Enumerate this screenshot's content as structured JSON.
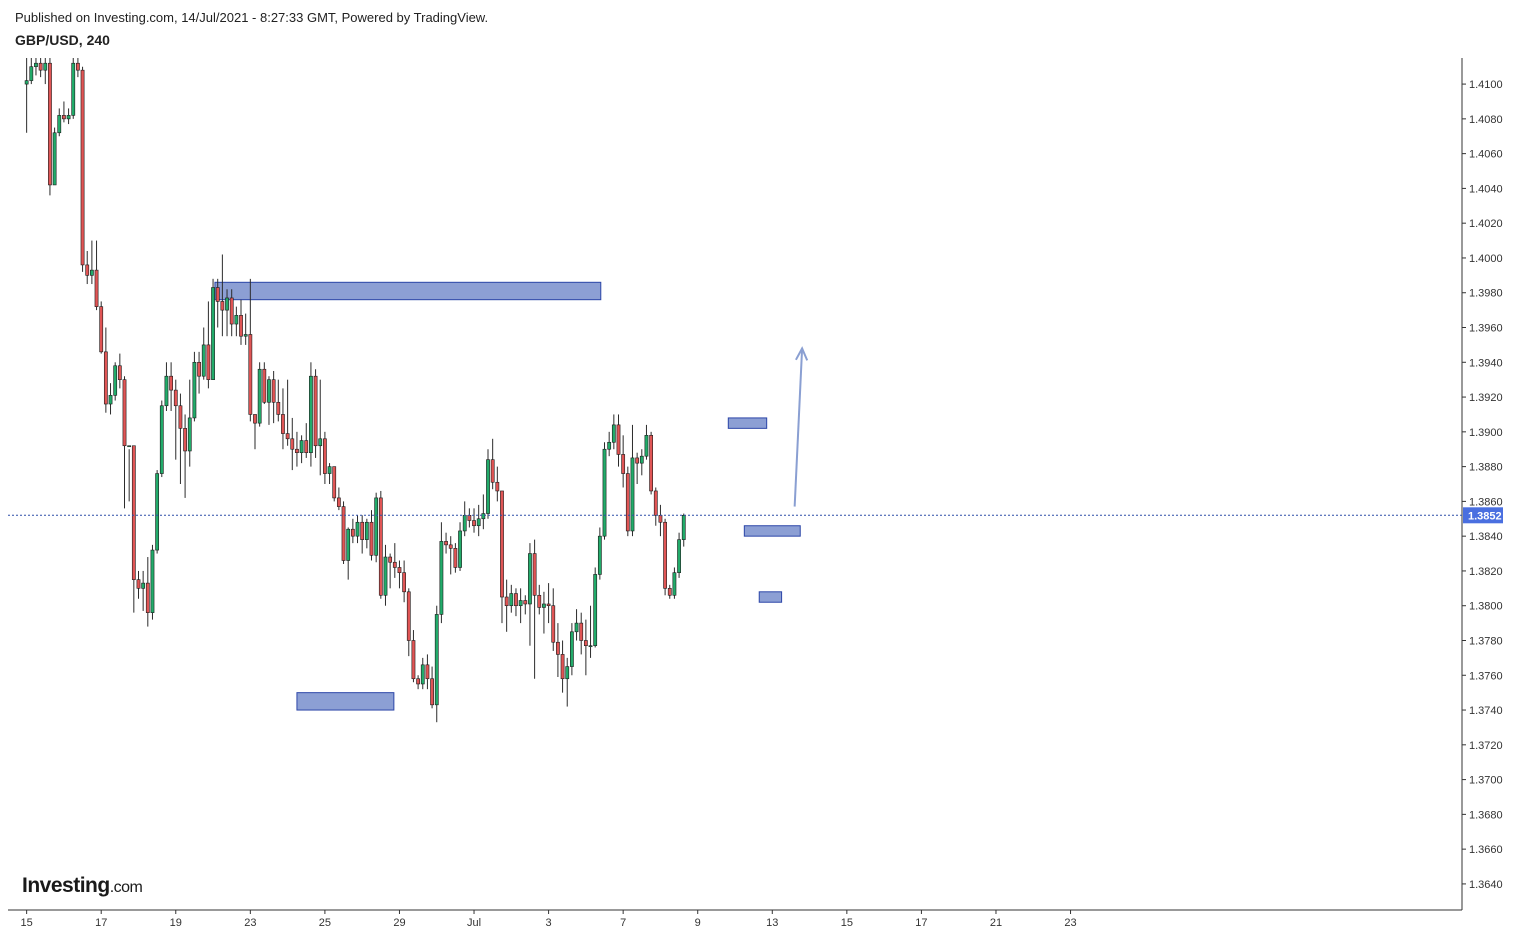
{
  "header": {
    "published": "Published on Investing.com, 14/Jul/2021 - 8:27:33 GMT, Powered by TradingView.",
    "symbol": "GBP/USD, 240"
  },
  "logo": {
    "main": "Investing",
    "suffix": ".com"
  },
  "colors": {
    "up": "#22ab6a",
    "down": "#e05555",
    "zone_fill": "#8c9fd4",
    "zone_stroke": "#2c46a8",
    "price_line": "#2f4fa8",
    "price_badge": "#4a6fe0",
    "arrow": "#8a9fd2",
    "wick": "#2b2b2b"
  },
  "chart_data": {
    "type": "candlestick",
    "ylim": [
      1.3625,
      1.4115
    ],
    "xlim": [
      -0.5,
      38.5
    ],
    "y_ticks": [
      "1.4100",
      "1.4080",
      "1.4060",
      "1.4040",
      "1.4020",
      "1.4000",
      "1.3980",
      "1.3960",
      "1.3940",
      "1.3920",
      "1.3900",
      "1.3880",
      "1.3860",
      "1.3840",
      "1.3820",
      "1.3800",
      "1.3780",
      "1.3760",
      "1.3740",
      "1.3720",
      "1.3700",
      "1.3680",
      "1.3660",
      "1.3640"
    ],
    "x_ticks": [
      {
        "label": "15",
        "x": 0
      },
      {
        "label": "17",
        "x": 2
      },
      {
        "label": "19",
        "x": 4
      },
      {
        "label": "23",
        "x": 6
      },
      {
        "label": "25",
        "x": 8
      },
      {
        "label": "29",
        "x": 10
      },
      {
        "label": "Jul",
        "x": 12
      },
      {
        "label": "3",
        "x": 14
      },
      {
        "label": "7",
        "x": 16
      },
      {
        "label": "9",
        "x": 18
      },
      {
        "label": "13",
        "x": 20
      },
      {
        "label": "15",
        "x": 22
      },
      {
        "label": "17",
        "x": 24
      },
      {
        "label": "21",
        "x": 26
      },
      {
        "label": "23",
        "x": 28
      }
    ],
    "current_price": "1.3852",
    "candles": [
      {
        "o": 1.41,
        "h": 1.4118,
        "l": 1.4072,
        "c": 1.4102
      },
      {
        "o": 1.4102,
        "h": 1.4115,
        "l": 1.41,
        "c": 1.411
      },
      {
        "o": 1.411,
        "h": 1.412,
        "l": 1.4105,
        "c": 1.4112
      },
      {
        "o": 1.4112,
        "h": 1.4118,
        "l": 1.4104,
        "c": 1.4108
      },
      {
        "o": 1.4108,
        "h": 1.4118,
        "l": 1.41,
        "c": 1.4112
      },
      {
        "o": 1.4112,
        "h": 1.4118,
        "l": 1.4036,
        "c": 1.4042
      },
      {
        "o": 1.4042,
        "h": 1.4075,
        "l": 1.4042,
        "c": 1.4072
      },
      {
        "o": 1.4072,
        "h": 1.4086,
        "l": 1.407,
        "c": 1.4082
      },
      {
        "o": 1.4082,
        "h": 1.409,
        "l": 1.4078,
        "c": 1.408
      },
      {
        "o": 1.408,
        "h": 1.4086,
        "l": 1.4077,
        "c": 1.4082
      },
      {
        "o": 1.4082,
        "h": 1.4118,
        "l": 1.408,
        "c": 1.4112
      },
      {
        "o": 1.4112,
        "h": 1.4118,
        "l": 1.4104,
        "c": 1.4108
      },
      {
        "o": 1.4108,
        "h": 1.411,
        "l": 1.3992,
        "c": 1.3996
      },
      {
        "o": 1.3996,
        "h": 1.4004,
        "l": 1.3985,
        "c": 1.399
      },
      {
        "o": 1.399,
        "h": 1.401,
        "l": 1.3985,
        "c": 1.3993
      },
      {
        "o": 1.3993,
        "h": 1.401,
        "l": 1.397,
        "c": 1.3972
      },
      {
        "o": 1.3972,
        "h": 1.3975,
        "l": 1.3945,
        "c": 1.3946
      },
      {
        "o": 1.3946,
        "h": 1.396,
        "l": 1.3911,
        "c": 1.3916
      },
      {
        "o": 1.3916,
        "h": 1.3928,
        "l": 1.391,
        "c": 1.3921
      },
      {
        "o": 1.3921,
        "h": 1.394,
        "l": 1.3918,
        "c": 1.3938
      },
      {
        "o": 1.3938,
        "h": 1.3945,
        "l": 1.3925,
        "c": 1.393
      },
      {
        "o": 1.393,
        "h": 1.3932,
        "l": 1.3856,
        "c": 1.3892
      },
      {
        "o": 1.3892,
        "h": 1.389,
        "l": 1.386,
        "c": 1.3892
      },
      {
        "o": 1.3892,
        "h": 1.3892,
        "l": 1.3796,
        "c": 1.3815
      },
      {
        "o": 1.3815,
        "h": 1.382,
        "l": 1.3804,
        "c": 1.381
      },
      {
        "o": 1.381,
        "h": 1.382,
        "l": 1.3797,
        "c": 1.3813
      },
      {
        "o": 1.3813,
        "h": 1.3828,
        "l": 1.3788,
        "c": 1.3796
      },
      {
        "o": 1.3796,
        "h": 1.3835,
        "l": 1.3792,
        "c": 1.3832
      },
      {
        "o": 1.3832,
        "h": 1.3878,
        "l": 1.383,
        "c": 1.3876
      },
      {
        "o": 1.3876,
        "h": 1.3918,
        "l": 1.3874,
        "c": 1.3915
      },
      {
        "o": 1.3915,
        "h": 1.394,
        "l": 1.3912,
        "c": 1.3932
      },
      {
        "o": 1.3932,
        "h": 1.394,
        "l": 1.3912,
        "c": 1.3924
      },
      {
        "o": 1.3924,
        "h": 1.393,
        "l": 1.3884,
        "c": 1.3915
      },
      {
        "o": 1.3915,
        "h": 1.3922,
        "l": 1.387,
        "c": 1.3902
      },
      {
        "o": 1.3902,
        "h": 1.391,
        "l": 1.3862,
        "c": 1.3889
      },
      {
        "o": 1.3889,
        "h": 1.393,
        "l": 1.388,
        "c": 1.3908
      },
      {
        "o": 1.3908,
        "h": 1.3946,
        "l": 1.3906,
        "c": 1.394
      },
      {
        "o": 1.394,
        "h": 1.3946,
        "l": 1.3922,
        "c": 1.3932
      },
      {
        "o": 1.3932,
        "h": 1.396,
        "l": 1.393,
        "c": 1.395
      },
      {
        "o": 1.395,
        "h": 1.3975,
        "l": 1.3925,
        "c": 1.393
      },
      {
        "o": 1.393,
        "h": 1.3988,
        "l": 1.393,
        "c": 1.3983
      },
      {
        "o": 1.3983,
        "h": 1.3988,
        "l": 1.396,
        "c": 1.3975
      },
      {
        "o": 1.3975,
        "h": 1.4002,
        "l": 1.3955,
        "c": 1.397
      },
      {
        "o": 1.397,
        "h": 1.3982,
        "l": 1.3955,
        "c": 1.3977
      },
      {
        "o": 1.3977,
        "h": 1.3982,
        "l": 1.3955,
        "c": 1.3962
      },
      {
        "o": 1.3962,
        "h": 1.3972,
        "l": 1.3955,
        "c": 1.3967
      },
      {
        "o": 1.3967,
        "h": 1.3976,
        "l": 1.395,
        "c": 1.3955
      },
      {
        "o": 1.3955,
        "h": 1.3968,
        "l": 1.395,
        "c": 1.3956
      },
      {
        "o": 1.3956,
        "h": 1.3988,
        "l": 1.3906,
        "c": 1.391
      },
      {
        "o": 1.391,
        "h": 1.391,
        "l": 1.389,
        "c": 1.3905
      },
      {
        "o": 1.3905,
        "h": 1.394,
        "l": 1.3903,
        "c": 1.3936
      },
      {
        "o": 1.3936,
        "h": 1.394,
        "l": 1.3916,
        "c": 1.3917
      },
      {
        "o": 1.3917,
        "h": 1.3932,
        "l": 1.3904,
        "c": 1.393
      },
      {
        "o": 1.393,
        "h": 1.3935,
        "l": 1.3905,
        "c": 1.3917
      },
      {
        "o": 1.3917,
        "h": 1.393,
        "l": 1.3906,
        "c": 1.391
      },
      {
        "o": 1.391,
        "h": 1.3925,
        "l": 1.389,
        "c": 1.3899
      },
      {
        "o": 1.3899,
        "h": 1.393,
        "l": 1.3892,
        "c": 1.3896
      },
      {
        "o": 1.3896,
        "h": 1.3908,
        "l": 1.3878,
        "c": 1.389
      },
      {
        "o": 1.389,
        "h": 1.39,
        "l": 1.388,
        "c": 1.3888
      },
      {
        "o": 1.3888,
        "h": 1.3898,
        "l": 1.3882,
        "c": 1.3895
      },
      {
        "o": 1.3895,
        "h": 1.3905,
        "l": 1.3885,
        "c": 1.3888
      },
      {
        "o": 1.3888,
        "h": 1.394,
        "l": 1.388,
        "c": 1.3932
      },
      {
        "o": 1.3932,
        "h": 1.3936,
        "l": 1.3885,
        "c": 1.3892
      },
      {
        "o": 1.3892,
        "h": 1.393,
        "l": 1.3875,
        "c": 1.3896
      },
      {
        "o": 1.3896,
        "h": 1.39,
        "l": 1.387,
        "c": 1.3876
      },
      {
        "o": 1.3876,
        "h": 1.3882,
        "l": 1.387,
        "c": 1.388
      },
      {
        "o": 1.388,
        "h": 1.388,
        "l": 1.386,
        "c": 1.3862
      },
      {
        "o": 1.3862,
        "h": 1.3868,
        "l": 1.3855,
        "c": 1.3857
      },
      {
        "o": 1.3857,
        "h": 1.386,
        "l": 1.3824,
        "c": 1.3826
      },
      {
        "o": 1.3826,
        "h": 1.3845,
        "l": 1.3815,
        "c": 1.3844
      },
      {
        "o": 1.3844,
        "h": 1.385,
        "l": 1.3836,
        "c": 1.384
      },
      {
        "o": 1.384,
        "h": 1.3852,
        "l": 1.3836,
        "c": 1.3848
      },
      {
        "o": 1.3848,
        "h": 1.3852,
        "l": 1.383,
        "c": 1.3838
      },
      {
        "o": 1.3838,
        "h": 1.385,
        "l": 1.3833,
        "c": 1.3848
      },
      {
        "o": 1.3848,
        "h": 1.3855,
        "l": 1.3826,
        "c": 1.3829
      },
      {
        "o": 1.3829,
        "h": 1.3865,
        "l": 1.3825,
        "c": 1.3862
      },
      {
        "o": 1.3862,
        "h": 1.3866,
        "l": 1.3804,
        "c": 1.3806
      },
      {
        "o": 1.3806,
        "h": 1.3835,
        "l": 1.38,
        "c": 1.3828
      },
      {
        "o": 1.3828,
        "h": 1.383,
        "l": 1.381,
        "c": 1.3825
      },
      {
        "o": 1.3825,
        "h": 1.3836,
        "l": 1.3816,
        "c": 1.3822
      },
      {
        "o": 1.3822,
        "h": 1.3826,
        "l": 1.381,
        "c": 1.3819
      },
      {
        "o": 1.3819,
        "h": 1.3826,
        "l": 1.3802,
        "c": 1.3808
      },
      {
        "o": 1.3808,
        "h": 1.381,
        "l": 1.3771,
        "c": 1.378
      },
      {
        "o": 1.378,
        "h": 1.3786,
        "l": 1.3756,
        "c": 1.3758
      },
      {
        "o": 1.3758,
        "h": 1.376,
        "l": 1.3752,
        "c": 1.3755
      },
      {
        "o": 1.3755,
        "h": 1.377,
        "l": 1.3752,
        "c": 1.3766
      },
      {
        "o": 1.3766,
        "h": 1.3772,
        "l": 1.3752,
        "c": 1.3758
      },
      {
        "o": 1.3758,
        "h": 1.3765,
        "l": 1.3741,
        "c": 1.3743
      },
      {
        "o": 1.3743,
        "h": 1.38,
        "l": 1.3733,
        "c": 1.3795
      },
      {
        "o": 1.3795,
        "h": 1.3848,
        "l": 1.379,
        "c": 1.3837
      },
      {
        "o": 1.3837,
        "h": 1.3842,
        "l": 1.383,
        "c": 1.3835
      },
      {
        "o": 1.3835,
        "h": 1.384,
        "l": 1.3818,
        "c": 1.3833
      },
      {
        "o": 1.3833,
        "h": 1.3836,
        "l": 1.3819,
        "c": 1.3822
      },
      {
        "o": 1.3822,
        "h": 1.3848,
        "l": 1.382,
        "c": 1.3843
      },
      {
        "o": 1.3843,
        "h": 1.386,
        "l": 1.384,
        "c": 1.3852
      },
      {
        "o": 1.3852,
        "h": 1.3856,
        "l": 1.3845,
        "c": 1.3849
      },
      {
        "o": 1.3849,
        "h": 1.3856,
        "l": 1.3842,
        "c": 1.3846
      },
      {
        "o": 1.3846,
        "h": 1.3858,
        "l": 1.384,
        "c": 1.385
      },
      {
        "o": 1.385,
        "h": 1.3864,
        "l": 1.3844,
        "c": 1.3853
      },
      {
        "o": 1.3853,
        "h": 1.389,
        "l": 1.385,
        "c": 1.3884
      },
      {
        "o": 1.3884,
        "h": 1.3896,
        "l": 1.3867,
        "c": 1.3871
      },
      {
        "o": 1.3871,
        "h": 1.388,
        "l": 1.386,
        "c": 1.3866
      },
      {
        "o": 1.3866,
        "h": 1.3866,
        "l": 1.379,
        "c": 1.3805
      },
      {
        "o": 1.3805,
        "h": 1.3815,
        "l": 1.3785,
        "c": 1.38
      },
      {
        "o": 1.38,
        "h": 1.3812,
        "l": 1.3796,
        "c": 1.3807
      },
      {
        "o": 1.3807,
        "h": 1.381,
        "l": 1.3794,
        "c": 1.38
      },
      {
        "o": 1.38,
        "h": 1.381,
        "l": 1.379,
        "c": 1.3803
      },
      {
        "o": 1.3803,
        "h": 1.3806,
        "l": 1.3795,
        "c": 1.3801
      },
      {
        "o": 1.3801,
        "h": 1.3836,
        "l": 1.3777,
        "c": 1.383
      },
      {
        "o": 1.383,
        "h": 1.3838,
        "l": 1.3758,
        "c": 1.3806
      },
      {
        "o": 1.3806,
        "h": 1.3812,
        "l": 1.3795,
        "c": 1.3799
      },
      {
        "o": 1.3799,
        "h": 1.3808,
        "l": 1.3784,
        "c": 1.3801
      },
      {
        "o": 1.3801,
        "h": 1.3813,
        "l": 1.379,
        "c": 1.38
      },
      {
        "o": 1.38,
        "h": 1.381,
        "l": 1.3774,
        "c": 1.3779
      },
      {
        "o": 1.3779,
        "h": 1.379,
        "l": 1.3759,
        "c": 1.3772
      },
      {
        "o": 1.3772,
        "h": 1.378,
        "l": 1.375,
        "c": 1.3758
      },
      {
        "o": 1.3758,
        "h": 1.377,
        "l": 1.3742,
        "c": 1.3765
      },
      {
        "o": 1.3765,
        "h": 1.379,
        "l": 1.376,
        "c": 1.3785
      },
      {
        "o": 1.3785,
        "h": 1.3798,
        "l": 1.378,
        "c": 1.379
      },
      {
        "o": 1.379,
        "h": 1.3796,
        "l": 1.3772,
        "c": 1.378
      },
      {
        "o": 1.378,
        "h": 1.3792,
        "l": 1.376,
        "c": 1.3777
      },
      {
        "o": 1.3777,
        "h": 1.38,
        "l": 1.377,
        "c": 1.3777
      },
      {
        "o": 1.3777,
        "h": 1.3822,
        "l": 1.3776,
        "c": 1.3818
      },
      {
        "o": 1.3818,
        "h": 1.3845,
        "l": 1.3815,
        "c": 1.384
      },
      {
        "o": 1.384,
        "h": 1.3894,
        "l": 1.3838,
        "c": 1.389
      },
      {
        "o": 1.389,
        "h": 1.39,
        "l": 1.3886,
        "c": 1.3894
      },
      {
        "o": 1.3894,
        "h": 1.391,
        "l": 1.389,
        "c": 1.3904
      },
      {
        "o": 1.3904,
        "h": 1.391,
        "l": 1.388,
        "c": 1.3887
      },
      {
        "o": 1.3887,
        "h": 1.3898,
        "l": 1.3868,
        "c": 1.3876
      },
      {
        "o": 1.3876,
        "h": 1.388,
        "l": 1.384,
        "c": 1.3843
      },
      {
        "o": 1.3843,
        "h": 1.3904,
        "l": 1.384,
        "c": 1.3885
      },
      {
        "o": 1.3885,
        "h": 1.3888,
        "l": 1.387,
        "c": 1.3882
      },
      {
        "o": 1.3882,
        "h": 1.389,
        "l": 1.3875,
        "c": 1.3886
      },
      {
        "o": 1.3886,
        "h": 1.3904,
        "l": 1.3884,
        "c": 1.3898
      },
      {
        "o": 1.3898,
        "h": 1.39,
        "l": 1.3864,
        "c": 1.3866
      },
      {
        "o": 1.3866,
        "h": 1.3868,
        "l": 1.3846,
        "c": 1.3852
      },
      {
        "o": 1.3852,
        "h": 1.3858,
        "l": 1.384,
        "c": 1.3848
      },
      {
        "o": 1.3848,
        "h": 1.385,
        "l": 1.3806,
        "c": 1.381
      },
      {
        "o": 1.381,
        "h": 1.3812,
        "l": 1.3804,
        "c": 1.3806
      },
      {
        "o": 1.3806,
        "h": 1.3822,
        "l": 1.3804,
        "c": 1.3819
      },
      {
        "o": 1.3819,
        "h": 1.3842,
        "l": 1.3816,
        "c": 1.3838
      },
      {
        "o": 1.3838,
        "h": 1.3853,
        "l": 1.3834,
        "c": 1.3852
      }
    ],
    "zones": [
      {
        "x0": 5.05,
        "x1": 15.4,
        "y0": 1.3976,
        "y1": 1.3986
      },
      {
        "x0": 7.25,
        "x1": 9.85,
        "y0": 1.374,
        "y1": 1.375
      },
      {
        "x0": 18.82,
        "x1": 19.85,
        "y0": 1.3902,
        "y1": 1.3908
      },
      {
        "x0": 19.25,
        "x1": 20.75,
        "y0": 1.384,
        "y1": 1.3846
      },
      {
        "x0": 19.65,
        "x1": 20.25,
        "y0": 1.3802,
        "y1": 1.3808
      }
    ],
    "arrow": {
      "x0": 20.6,
      "y0": 1.3857,
      "x1": 20.8,
      "y1": 1.3948
    }
  }
}
